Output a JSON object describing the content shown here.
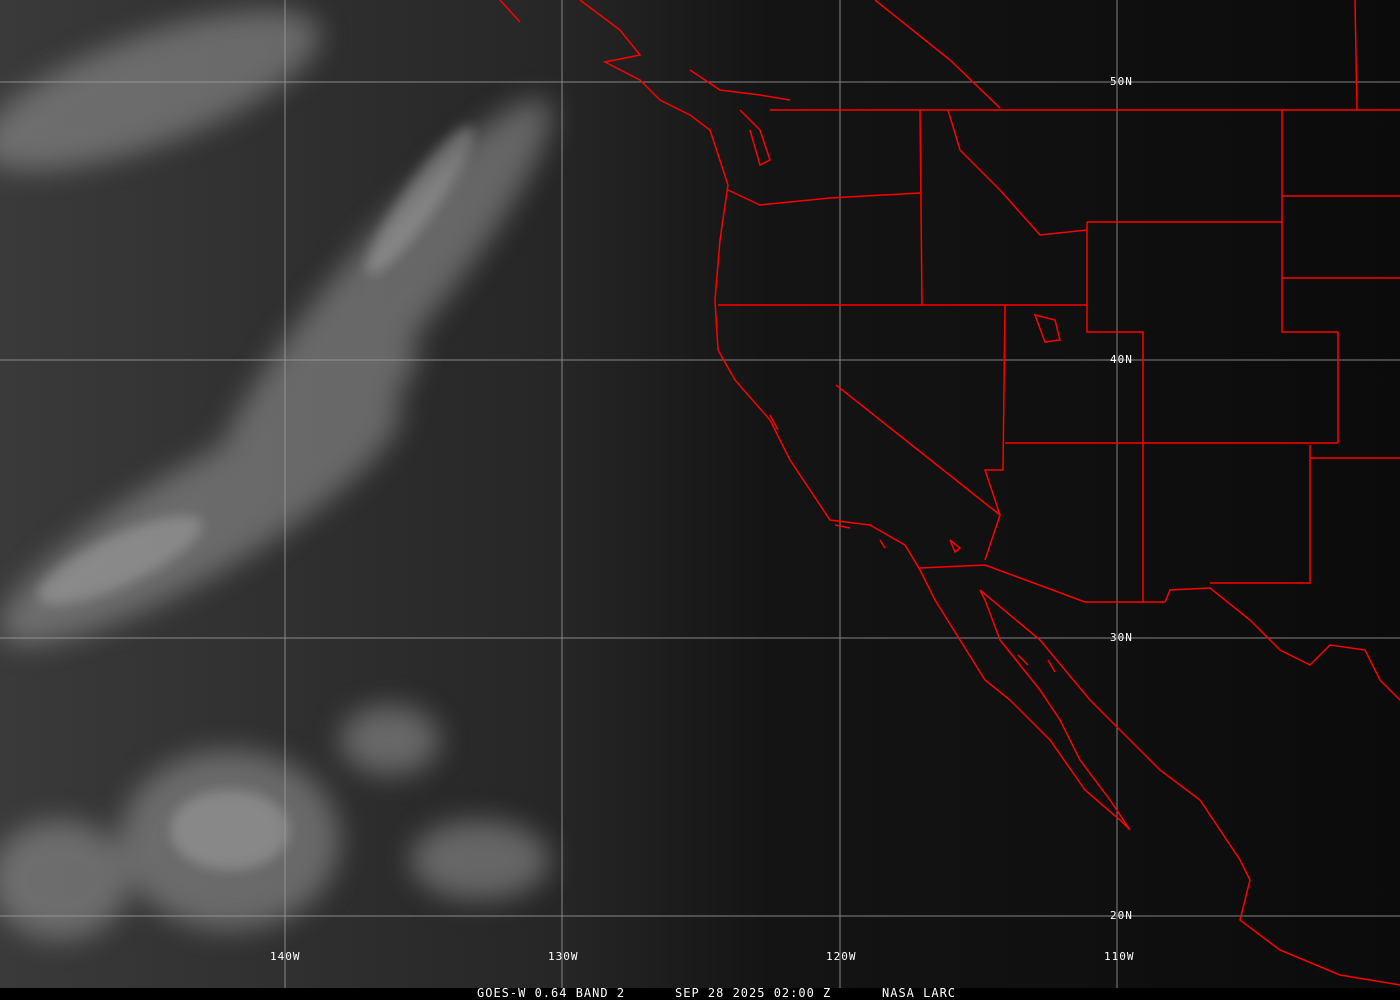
{
  "footer": {
    "product": "GOES-W 0.64 BAND 2",
    "datetime": "SEP 28 2025 02:00 Z",
    "source": "NASA LARC"
  },
  "grid": {
    "longitude_labels": [
      "140W",
      "130W",
      "120W",
      "110W"
    ],
    "latitude_labels": [
      "50N",
      "40N",
      "30N",
      "20N"
    ]
  },
  "colors": {
    "boundaries": "#ff0000",
    "grid": "#a0a0a0",
    "background": "#0a0a0a"
  }
}
